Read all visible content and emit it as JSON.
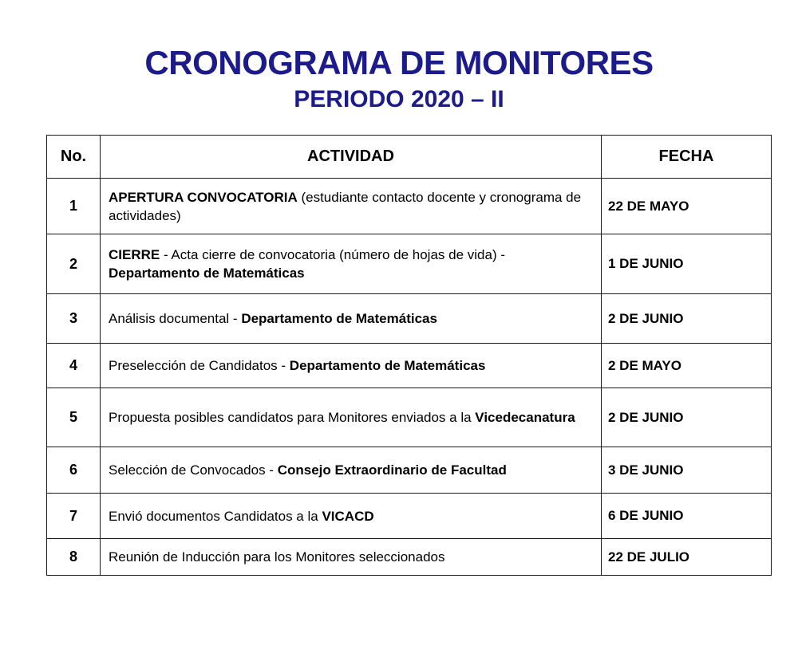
{
  "page": {
    "title": "CRONOGRAMA DE MONITORES",
    "subtitle": "PERIODO 2020 – II",
    "title_color": "#1b1b8c",
    "background_color": "#ffffff",
    "text_color": "#000000"
  },
  "table": {
    "headers": [
      "No.",
      "ACTIVIDAD",
      "FECHA"
    ],
    "rows": [
      {
        "no": "1",
        "activity": [
          {
            "text": "APERTURA CONVOCATORIA",
            "bold": true
          },
          {
            "text": " (estudiante contacto docente y cronograma de actividades)",
            "bold": false
          }
        ],
        "fecha": "22 DE MAYO"
      },
      {
        "no": "2",
        "activity": [
          {
            "text": "CIERRE",
            "bold": true
          },
          {
            "text": " - Acta cierre de convocatoria (número de hojas de vida) - ",
            "bold": false
          },
          {
            "text": "Departamento de Matemáticas",
            "bold": true
          }
        ],
        "fecha": "1 DE JUNIO"
      },
      {
        "no": "3",
        "activity": [
          {
            "text": "Análisis documental - ",
            "bold": false
          },
          {
            "text": "Departamento de Matemáticas",
            "bold": true
          }
        ],
        "fecha": "2 DE JUNIO"
      },
      {
        "no": "4",
        "activity": [
          {
            "text": "Preselección de Candidatos - ",
            "bold": false
          },
          {
            "text": "Departamento de Matemáticas",
            "bold": true
          }
        ],
        "fecha": "2 DE MAYO"
      },
      {
        "no": "5",
        "activity": [
          {
            "text": "Propuesta posibles candidatos para Monitores enviados a la ",
            "bold": false
          },
          {
            "text": "Vicedecanatura",
            "bold": true
          }
        ],
        "fecha": "2 DE JUNIO"
      },
      {
        "no": "6",
        "activity": [
          {
            "text": "Selección de Convocados - ",
            "bold": false
          },
          {
            "text": "Consejo Extraordinario de Facultad",
            "bold": true
          }
        ],
        "fecha": "3 DE JUNIO"
      },
      {
        "no": "7",
        "activity": [
          {
            "text": "Envió documentos Candidatos a la ",
            "bold": false
          },
          {
            "text": "VICACD",
            "bold": true
          }
        ],
        "fecha": "6 DE JUNIO"
      },
      {
        "no": "8",
        "activity": [
          {
            "text": "Reunión de Inducción para los Monitores seleccionados",
            "bold": false
          }
        ],
        "fecha": "22 DE JULIO"
      }
    ]
  }
}
